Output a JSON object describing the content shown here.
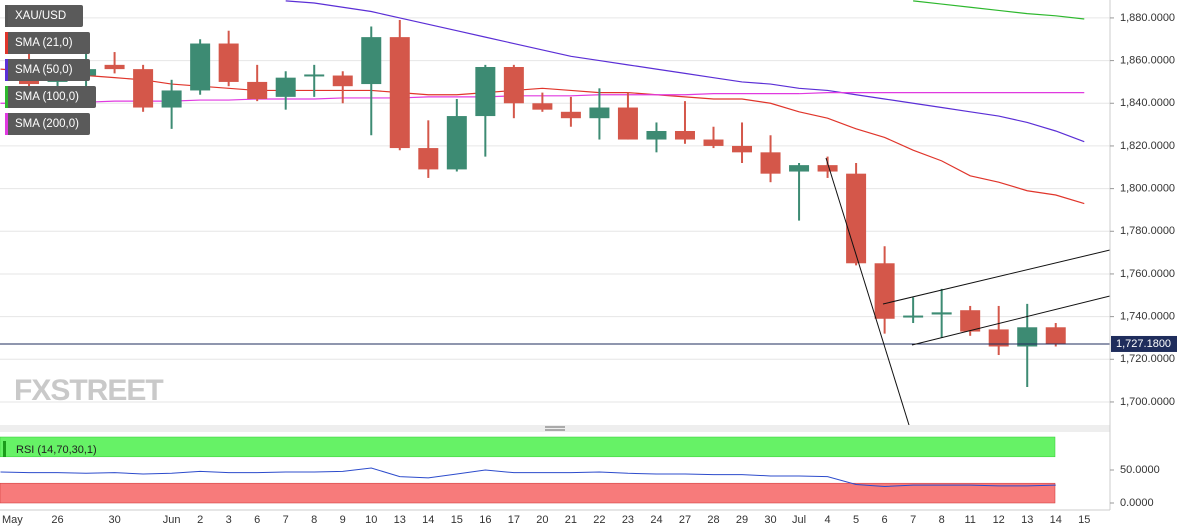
{
  "chart_data": [
    {
      "type": "candlestick",
      "name": "XAU/USD",
      "watermark": "FXSTREET",
      "categories": [
        "May",
        null,
        "26",
        null,
        "30",
        null,
        "Jun",
        "2",
        "3",
        "6",
        "7",
        "8",
        "9",
        "10",
        "13",
        "14",
        "15",
        "16",
        "17",
        "20",
        "21",
        "22",
        "23",
        "24",
        "27",
        "28",
        "29",
        "30",
        "Jul",
        "4",
        "5",
        "6",
        "7",
        "8",
        "11",
        "12",
        "13",
        "14",
        "15"
      ],
      "open": [
        null,
        1856,
        1850,
        1853,
        1858,
        1856,
        1838,
        1846,
        1868,
        1850,
        1843,
        1853,
        1853,
        1849,
        1871,
        1819,
        1809,
        1834,
        1857,
        1840,
        1836,
        1833,
        1838,
        1823,
        1827,
        1823,
        1820,
        1817,
        1808,
        1811,
        1807,
        1765,
        1740,
        1741,
        1743,
        1734,
        1726,
        1735,
        null
      ],
      "high": [
        null,
        1866,
        1858,
        1873,
        1864,
        1858,
        1851,
        1870,
        1874,
        1858,
        1855,
        1858,
        1855,
        1876,
        1879,
        1832,
        1842,
        1858,
        1858,
        1845,
        1843,
        1847,
        1845,
        1831,
        1841,
        1829,
        1831,
        1825,
        1812,
        1815,
        1812,
        1773,
        1749,
        1753,
        1745,
        1745,
        1746,
        1737,
        null
      ],
      "low": [
        null,
        1843,
        1840,
        1847,
        1854,
        1836,
        1828,
        1844,
        1848,
        1841,
        1837,
        1843,
        1840,
        1825,
        1818,
        1805,
        1808,
        1815,
        1833,
        1836,
        1829,
        1823,
        1823,
        1817,
        1821,
        1819,
        1812,
        1803,
        1785,
        1805,
        1764,
        1732,
        1737,
        1730,
        1731,
        1722,
        1707,
        1726,
        null
      ],
      "close": [
        null,
        1849,
        1853,
        1856,
        1856,
        1838,
        1846,
        1868,
        1850,
        1842,
        1852,
        1853.5,
        1848,
        1871,
        1819,
        1809,
        1834,
        1857,
        1840,
        1837,
        1833,
        1838,
        1823,
        1827,
        1823,
        1820,
        1817,
        1807,
        1811,
        1808,
        1765,
        1739,
        1740.5,
        1742,
        1733,
        1726,
        1735,
        1727.18,
        null
      ],
      "up_color": "#3d8b73",
      "down_color": "#d4574a",
      "series": [
        {
          "name": "SMA (21,0)",
          "color": "#e0352b",
          "values": [
            1856,
            1855,
            1854,
            1853,
            1852,
            1851,
            1849,
            1848,
            1847,
            1846,
            1846,
            1846,
            1846,
            1846,
            1845,
            1844,
            1844,
            1845,
            1846,
            1847,
            1846,
            1845,
            1845,
            1844,
            1843,
            1842,
            1842,
            1840,
            1836,
            1833,
            1828,
            1824,
            1818,
            1813,
            1806,
            1803,
            1799,
            1797,
            1793
          ]
        },
        {
          "name": "SMA (50,0)",
          "color": "#5b2fd6",
          "values": [
            null,
            null,
            null,
            null,
            null,
            null,
            null,
            null,
            null,
            null,
            1888,
            1887,
            1885,
            1883,
            1880,
            1877,
            1874,
            1871,
            1868,
            1865,
            1862,
            1860,
            1858,
            1856,
            1854,
            1852,
            1850,
            1849,
            1847,
            1846,
            1844,
            1842,
            1840,
            1838,
            1836,
            1834,
            1831,
            1827,
            1822
          ]
        },
        {
          "name": "SMA (100,0)",
          "color": "#2eb82e",
          "values": [
            null,
            null,
            null,
            null,
            null,
            null,
            null,
            null,
            null,
            null,
            null,
            null,
            null,
            null,
            null,
            null,
            null,
            null,
            null,
            null,
            null,
            null,
            null,
            null,
            null,
            null,
            null,
            null,
            null,
            null,
            null,
            null,
            1888,
            1886.5,
            1885,
            1883.5,
            1882,
            1881,
            1879.5
          ]
        },
        {
          "name": "SMA (200,0)",
          "color": "#e03ae0",
          "values": [
            1840,
            1840,
            1840.5,
            1840.5,
            1841,
            1841,
            1841,
            1841.5,
            1841.5,
            1842,
            1842,
            1842,
            1842.5,
            1842.5,
            1842.5,
            1843,
            1843,
            1843,
            1843.5,
            1843.5,
            1843.5,
            1844,
            1844,
            1844,
            1844,
            1844.5,
            1844.5,
            1844.5,
            1844.5,
            1845,
            1845,
            1845,
            1845,
            1845,
            1845,
            1845,
            1845,
            1845,
            1845
          ]
        }
      ],
      "last": {
        "value": 1727.18,
        "label": "1,727.1800"
      },
      "last_color": "#1f2d5c",
      "ylim": [
        1689.2,
        1888.4
      ],
      "yticks": [
        {
          "value": 1700,
          "label": "1,700.0000"
        },
        {
          "value": 1720,
          "label": "1,720.0000"
        },
        {
          "value": 1740,
          "label": "1,740.0000"
        },
        {
          "value": 1760,
          "label": "1,760.0000"
        },
        {
          "value": 1780,
          "label": "1,780.0000"
        },
        {
          "value": 1800,
          "label": "1,800.0000"
        },
        {
          "value": 1820,
          "label": "1,820.0000"
        },
        {
          "value": 1840,
          "label": "1,840.0000"
        },
        {
          "value": 1860,
          "label": "1,860.0000"
        },
        {
          "value": 1880,
          "label": "1,880.0000"
        }
      ],
      "grid": true
    },
    {
      "type": "line",
      "title": "RSI (14,70,30,1)",
      "values": [
        47,
        46,
        46,
        45,
        46,
        44,
        45,
        48,
        46,
        46,
        47,
        47,
        48,
        53,
        40,
        38,
        44,
        50,
        46,
        46,
        46,
        47,
        45,
        44,
        44,
        43,
        43,
        41,
        41,
        40,
        28,
        25,
        27,
        27,
        27,
        26,
        26,
        27,
        null
      ],
      "color": "#2d4ccc",
      "upper_band": 70,
      "upper_color": "#66f266",
      "lower_band": 30,
      "lower_color": "#f77b7b",
      "ylim": [
        0,
        100
      ],
      "yticks": [
        {
          "value": 0,
          "label": "0.0000"
        },
        {
          "value": 50,
          "label": "50.0000"
        }
      ]
    }
  ]
}
